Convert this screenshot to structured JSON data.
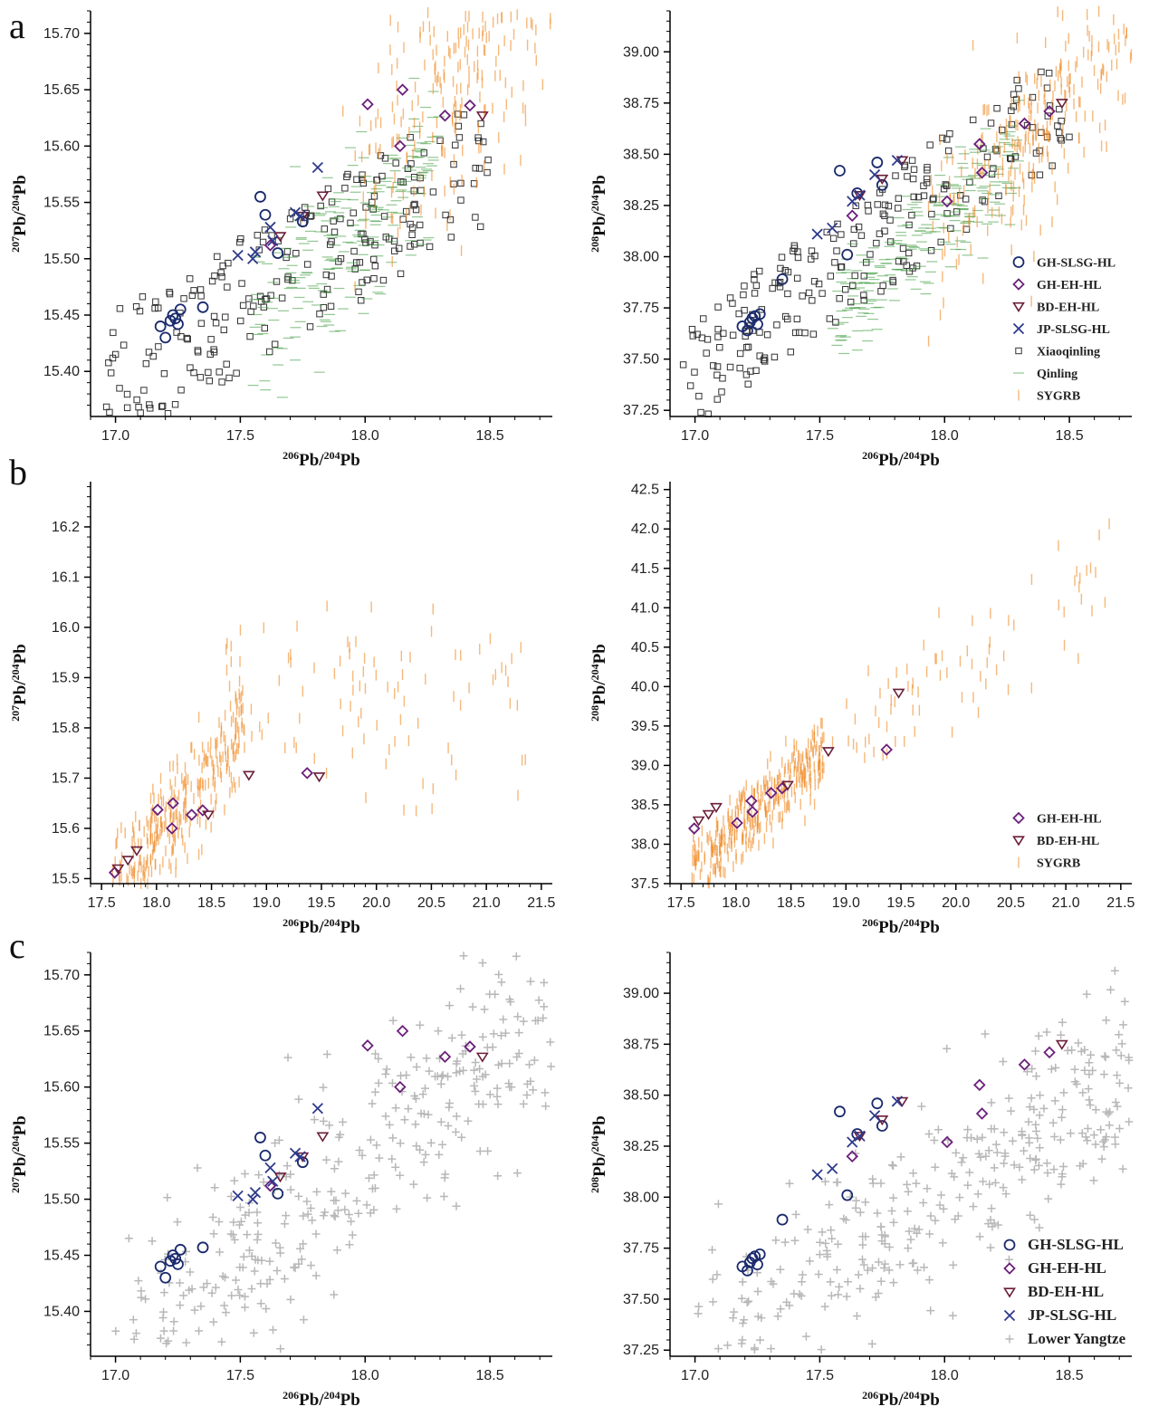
{
  "figure": {
    "panel_letters": [
      "a",
      "b",
      "c"
    ],
    "colors": {
      "GH-SLSG-HL": "#1a2a6c",
      "GH-EH-HL": "#6b1f7a",
      "BD-EH-HL": "#6b1f3a",
      "JP-SLSG-HL": "#2e3a8c",
      "Xiaoqinling": "#333333",
      "Qinling": "#3a9a3a",
      "SYGRB": "#f08a24",
      "Lower Yangtze": "#b8b8b8"
    }
  },
  "labels": {
    "x206": {
      "pb": "Pb",
      "sup_num": "206",
      "sup_den": "204"
    },
    "y207": {
      "pb": "Pb",
      "sup_num": "207",
      "sup_den": "204"
    },
    "y208": {
      "pb": "Pb",
      "sup_num": "208",
      "sup_den": "204"
    }
  },
  "chart_data": [
    {
      "panel": "a-left",
      "type": "scatter",
      "xlabel": "206Pb/204Pb",
      "ylabel": "207Pb/204Pb",
      "xlim": [
        16.9,
        18.75
      ],
      "ylim": [
        15.36,
        15.72
      ],
      "xticks": [
        "17.0",
        "17.5",
        "18.0",
        "18.5"
      ],
      "yticks": [
        "15.40",
        "15.45",
        "15.50",
        "15.55",
        "15.60",
        "15.65",
        "15.70"
      ],
      "series": [
        {
          "name": "GH-SLSG-HL",
          "marker": "circle",
          "x": [
            17.18,
            17.2,
            17.22,
            17.23,
            17.24,
            17.25,
            17.26,
            17.35,
            17.58,
            17.6,
            17.65,
            17.75
          ],
          "y": [
            15.44,
            15.43,
            15.445,
            15.45,
            15.447,
            15.442,
            15.455,
            15.457,
            15.555,
            15.539,
            15.505,
            15.533
          ]
        },
        {
          "name": "GH-EH-HL",
          "marker": "diamond",
          "x": [
            17.62,
            18.01,
            18.14,
            18.15,
            18.32,
            18.42
          ],
          "y": [
            15.512,
            15.637,
            15.6,
            15.65,
            15.627,
            15.636
          ]
        },
        {
          "name": "BD-EH-HL",
          "marker": "triangle",
          "x": [
            17.66,
            17.75,
            17.83,
            18.47
          ],
          "y": [
            15.52,
            15.538,
            15.556,
            15.627
          ]
        },
        {
          "name": "JP-SLSG-HL",
          "marker": "x",
          "x": [
            17.49,
            17.55,
            17.56,
            17.62,
            17.63,
            17.72,
            17.74,
            17.81
          ],
          "y": [
            15.503,
            15.5,
            15.506,
            15.528,
            15.516,
            15.541,
            15.538,
            15.581
          ]
        }
      ],
      "backgrounds": [
        "Xiaoqinling",
        "Qinling",
        "SYGRB"
      ]
    },
    {
      "panel": "a-right",
      "type": "scatter",
      "xlabel": "206Pb/204Pb",
      "ylabel": "208Pb/204Pb",
      "xlim": [
        16.9,
        18.75
      ],
      "ylim": [
        37.22,
        39.2
      ],
      "xticks": [
        "17.0",
        "17.5",
        "18.0",
        "18.5"
      ],
      "yticks": [
        "37.25",
        "37.50",
        "37.75",
        "38.00",
        "38.25",
        "38.50",
        "38.75",
        "39.00"
      ],
      "series": [
        {
          "name": "GH-SLSG-HL",
          "marker": "circle",
          "x": [
            17.19,
            17.21,
            17.22,
            17.23,
            17.24,
            17.25,
            17.26,
            17.35,
            17.58,
            17.61,
            17.65,
            17.73,
            17.75
          ],
          "y": [
            37.66,
            37.64,
            37.68,
            37.7,
            37.71,
            37.67,
            37.72,
            37.89,
            38.42,
            38.01,
            38.31,
            38.46,
            38.35
          ]
        },
        {
          "name": "GH-EH-HL",
          "marker": "diamond",
          "x": [
            17.63,
            18.01,
            18.14,
            18.15,
            18.32,
            18.42
          ],
          "y": [
            38.2,
            38.27,
            38.55,
            38.41,
            38.65,
            38.71
          ]
        },
        {
          "name": "BD-EH-HL",
          "marker": "triangle",
          "x": [
            17.66,
            17.75,
            17.83,
            18.47
          ],
          "y": [
            38.3,
            38.38,
            38.47,
            38.75
          ]
        },
        {
          "name": "JP-SLSG-HL",
          "marker": "x",
          "x": [
            17.49,
            17.55,
            17.63,
            17.66,
            17.72,
            17.81
          ],
          "y": [
            38.11,
            38.14,
            38.27,
            38.3,
            38.4,
            38.47
          ]
        }
      ],
      "legend": {
        "placement": "bottom-right",
        "entries": [
          "GH-SLSG-HL",
          "GH-EH-HL",
          "BD-EH-HL",
          "JP-SLSG-HL",
          "Xiaoqinling",
          "Qinling",
          "SYGRB"
        ]
      }
    },
    {
      "panel": "b-left",
      "type": "scatter",
      "xlabel": "206Pb/204Pb",
      "ylabel": "207Pb/204Pb",
      "xlim": [
        17.4,
        21.6
      ],
      "ylim": [
        15.49,
        16.29
      ],
      "xticks": [
        "17.5",
        "18.0",
        "18.5",
        "19.0",
        "19.5",
        "20.0",
        "20.5",
        "21.0",
        "21.5"
      ],
      "yticks": [
        "15.5",
        "15.6",
        "15.7",
        "15.8",
        "15.9",
        "16.0",
        "16.1",
        "16.2"
      ],
      "series": [
        {
          "name": "GH-EH-HL",
          "marker": "diamond",
          "x": [
            17.62,
            18.01,
            18.14,
            18.15,
            18.32,
            18.42,
            19.37
          ],
          "y": [
            15.512,
            15.637,
            15.6,
            15.65,
            15.627,
            15.636,
            15.71
          ]
        },
        {
          "name": "BD-EH-HL",
          "marker": "triangle",
          "x": [
            17.65,
            17.74,
            17.82,
            18.47,
            18.84,
            19.48
          ],
          "y": [
            15.52,
            15.537,
            15.556,
            15.627,
            15.706,
            15.703
          ]
        }
      ],
      "backgrounds": [
        "SYGRB"
      ]
    },
    {
      "panel": "b-right",
      "type": "scatter",
      "xlabel": "206Pb/204Pb",
      "ylabel": "208Pb/204Pb",
      "xlim": [
        17.4,
        21.6
      ],
      "ylim": [
        37.5,
        42.6
      ],
      "xticks": [
        "17.5",
        "18.0",
        "18.5",
        "19.0",
        "19.5",
        "20.0",
        "20.5",
        "21.0",
        "21.5"
      ],
      "yticks": [
        "37.5",
        "38.0",
        "38.5",
        "39.0",
        "39.5",
        "40.0",
        "40.5",
        "41.0",
        "41.5",
        "42.0",
        "42.5"
      ],
      "series": [
        {
          "name": "GH-EH-HL",
          "marker": "diamond",
          "x": [
            17.62,
            18.01,
            18.14,
            18.15,
            18.32,
            18.42,
            19.37
          ],
          "y": [
            38.2,
            38.27,
            38.55,
            38.41,
            38.65,
            38.71,
            39.2
          ]
        },
        {
          "name": "BD-EH-HL",
          "marker": "triangle",
          "x": [
            17.66,
            17.75,
            17.82,
            18.47,
            18.84,
            19.48
          ],
          "y": [
            38.3,
            38.38,
            38.47,
            38.75,
            39.18,
            39.92
          ]
        }
      ],
      "legend": {
        "placement": "bottom-right",
        "entries": [
          "GH-EH-HL",
          "BD-EH-HL",
          "SYGRB"
        ]
      }
    },
    {
      "panel": "c-left",
      "type": "scatter",
      "xlabel": "206Pb/204Pb",
      "ylabel": "207Pb/204Pb",
      "xlim": [
        16.9,
        18.75
      ],
      "ylim": [
        15.36,
        15.72
      ],
      "xticks": [
        "17.0",
        "17.5",
        "18.0",
        "18.5"
      ],
      "yticks": [
        "15.40",
        "15.45",
        "15.50",
        "15.55",
        "15.60",
        "15.65",
        "15.70"
      ],
      "series": [
        {
          "name": "GH-SLSG-HL",
          "marker": "circle",
          "x": [
            17.18,
            17.2,
            17.22,
            17.23,
            17.24,
            17.25,
            17.26,
            17.35,
            17.58,
            17.6,
            17.65,
            17.75
          ],
          "y": [
            15.44,
            15.43,
            15.445,
            15.45,
            15.447,
            15.442,
            15.455,
            15.457,
            15.555,
            15.539,
            15.505,
            15.533
          ]
        },
        {
          "name": "GH-EH-HL",
          "marker": "diamond",
          "x": [
            17.62,
            18.01,
            18.14,
            18.15,
            18.32,
            18.42
          ],
          "y": [
            15.512,
            15.637,
            15.6,
            15.65,
            15.627,
            15.636
          ]
        },
        {
          "name": "BD-EH-HL",
          "marker": "triangle",
          "x": [
            17.66,
            17.75,
            17.83,
            18.47
          ],
          "y": [
            15.52,
            15.538,
            15.556,
            15.627
          ]
        },
        {
          "name": "JP-SLSG-HL",
          "marker": "x",
          "x": [
            17.49,
            17.55,
            17.56,
            17.62,
            17.63,
            17.72,
            17.74,
            17.81
          ],
          "y": [
            15.503,
            15.5,
            15.506,
            15.528,
            15.516,
            15.541,
            15.538,
            15.581
          ]
        }
      ],
      "backgrounds": [
        "Lower Yangtze"
      ]
    },
    {
      "panel": "c-right",
      "type": "scatter",
      "xlabel": "206Pb/204Pb",
      "ylabel": "208Pb/204Pb",
      "xlim": [
        16.9,
        18.75
      ],
      "ylim": [
        37.22,
        39.2
      ],
      "xticks": [
        "17.0",
        "17.5",
        "18.0",
        "18.5"
      ],
      "yticks": [
        "37.25",
        "37.50",
        "37.75",
        "38.00",
        "38.25",
        "38.50",
        "38.75",
        "39.00"
      ],
      "series": [
        {
          "name": "GH-SLSG-HL",
          "marker": "circle",
          "x": [
            17.19,
            17.21,
            17.22,
            17.23,
            17.24,
            17.25,
            17.26,
            17.35,
            17.58,
            17.61,
            17.65,
            17.73,
            17.75
          ],
          "y": [
            37.66,
            37.64,
            37.68,
            37.7,
            37.71,
            37.67,
            37.72,
            37.89,
            38.42,
            38.01,
            38.31,
            38.46,
            38.35
          ]
        },
        {
          "name": "GH-EH-HL",
          "marker": "diamond",
          "x": [
            17.63,
            18.01,
            18.14,
            18.15,
            18.32,
            18.42
          ],
          "y": [
            38.2,
            38.27,
            38.55,
            38.41,
            38.65,
            38.71
          ]
        },
        {
          "name": "BD-EH-HL",
          "marker": "triangle",
          "x": [
            17.66,
            17.75,
            17.83,
            18.47
          ],
          "y": [
            38.3,
            38.38,
            38.47,
            38.75
          ]
        },
        {
          "name": "JP-SLSG-HL",
          "marker": "x",
          "x": [
            17.49,
            17.55,
            17.63,
            17.66,
            17.72,
            17.81
          ],
          "y": [
            38.11,
            38.14,
            38.27,
            38.3,
            38.4,
            38.47
          ]
        }
      ],
      "legend": {
        "placement": "bottom-right",
        "entries": [
          "GH-SLSG-HL",
          "GH-EH-HL",
          "BD-EH-HL",
          "JP-SLSG-HL",
          "Lower Yangtze"
        ]
      }
    }
  ]
}
